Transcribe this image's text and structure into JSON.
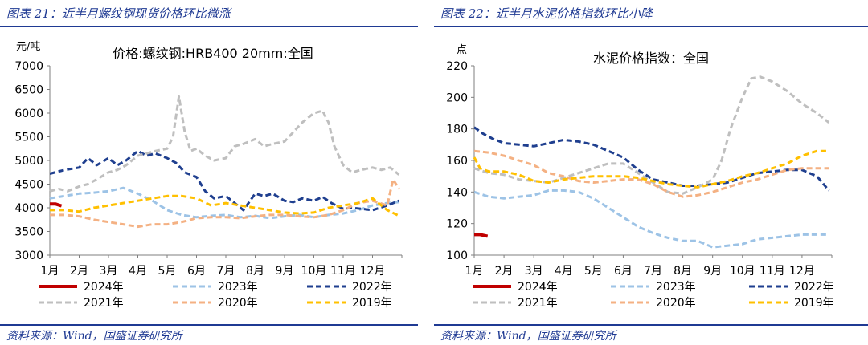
{
  "left": {
    "figure_title": "图表 21：近半月螺纹钢现货价格环比微涨",
    "source": "资料来源：Wind，国盛证券研究所"
  },
  "right": {
    "figure_title": "图表 22：近半月水泥价格指数环比小降",
    "source": "资料来源：Wind，国盛证券研究所"
  },
  "series_colors": {
    "2024年": "#c00000",
    "2023年": "#9dc3e6",
    "2022年": "#1f3f8f",
    "2021年": "#bfbfbf",
    "2020年": "#f4b183",
    "2019年": "#ffc000"
  },
  "chart_data": [
    {
      "type": "line",
      "title": "价格:螺纹钢:HRB400 20mm:全国",
      "ylabel": "元/吨",
      "ylim": [
        3000,
        7000
      ],
      "yticks": [
        3000,
        3500,
        4000,
        4500,
        5000,
        5500,
        6000,
        6500,
        7000
      ],
      "categories": [
        "1月",
        "2月",
        "3月",
        "4月",
        "5月",
        "6月",
        "7月",
        "8月",
        "9月",
        "10月",
        "11月",
        "12月"
      ],
      "x_domain": [
        1,
        13
      ],
      "series": [
        {
          "name": "2024年",
          "x": [
            1.0,
            1.2,
            1.4
          ],
          "values": [
            4080,
            4080,
            4040
          ]
        },
        {
          "name": "2023年",
          "x": [
            1.0,
            1.5,
            2.0,
            2.5,
            3.0,
            3.5,
            4.0,
            4.5,
            5.0,
            5.5,
            6.0,
            6.5,
            7.0,
            7.5,
            8.0,
            8.5,
            9.0,
            9.5,
            10.0,
            10.5,
            11.0,
            11.5,
            12.0,
            12.5,
            12.9
          ],
          "values": [
            4200,
            4250,
            4300,
            4320,
            4350,
            4420,
            4300,
            4150,
            3950,
            3850,
            3800,
            3830,
            3850,
            3800,
            3830,
            3780,
            3820,
            3850,
            3800,
            3850,
            3880,
            3950,
            4050,
            4100,
            4120
          ]
        },
        {
          "name": "2022年",
          "x": [
            1.0,
            1.5,
            2.0,
            2.3,
            2.6,
            3.0,
            3.3,
            3.6,
            4.0,
            4.3,
            4.6,
            5.0,
            5.3,
            5.6,
            6.0,
            6.3,
            6.6,
            7.0,
            7.3,
            7.6,
            8.0,
            8.3,
            8.6,
            9.0,
            9.3,
            9.6,
            10.0,
            10.3,
            10.6,
            11.0,
            11.3,
            11.6,
            12.0,
            12.5,
            12.9
          ],
          "values": [
            4720,
            4800,
            4850,
            5050,
            4900,
            5050,
            4900,
            5000,
            5200,
            5100,
            5150,
            5050,
            4950,
            4750,
            4650,
            4350,
            4200,
            4250,
            4100,
            3950,
            4300,
            4250,
            4300,
            4150,
            4120,
            4200,
            4150,
            4230,
            4100,
            3980,
            4000,
            3980,
            3950,
            4050,
            4150
          ]
        },
        {
          "name": "2021年",
          "x": [
            1.0,
            1.3,
            1.6,
            2.0,
            2.3,
            2.6,
            3.0,
            3.3,
            3.6,
            4.0,
            4.3,
            4.6,
            5.0,
            5.2,
            5.4,
            5.6,
            5.8,
            6.0,
            6.3,
            6.6,
            7.0,
            7.3,
            7.6,
            8.0,
            8.3,
            8.6,
            9.0,
            9.3,
            9.6,
            10.0,
            10.3,
            10.5,
            10.7,
            11.0,
            11.3,
            11.6,
            12.0,
            12.3,
            12.6,
            12.9
          ],
          "values": [
            4350,
            4400,
            4350,
            4450,
            4500,
            4600,
            4750,
            4800,
            4900,
            5100,
            5150,
            5200,
            5250,
            5500,
            6350,
            5600,
            5200,
            5250,
            5100,
            5000,
            5050,
            5300,
            5350,
            5450,
            5300,
            5350,
            5400,
            5600,
            5800,
            6000,
            6050,
            5800,
            5300,
            4900,
            4750,
            4800,
            4850,
            4800,
            4850,
            4700
          ]
        },
        {
          "name": "2020年",
          "x": [
            1.0,
            1.5,
            2.0,
            2.5,
            3.0,
            3.5,
            4.0,
            4.5,
            5.0,
            5.5,
            6.0,
            6.5,
            7.0,
            7.5,
            8.0,
            8.5,
            9.0,
            9.5,
            10.0,
            10.5,
            11.0,
            11.5,
            12.0,
            12.5,
            12.7,
            12.9
          ],
          "values": [
            3850,
            3850,
            3820,
            3750,
            3700,
            3650,
            3600,
            3650,
            3650,
            3700,
            3780,
            3800,
            3800,
            3780,
            3820,
            3850,
            3850,
            3820,
            3800,
            3850,
            3950,
            4100,
            4150,
            4050,
            4600,
            4400
          ]
        },
        {
          "name": "2019年",
          "x": [
            1.0,
            1.5,
            2.0,
            2.5,
            3.0,
            3.5,
            4.0,
            4.5,
            5.0,
            5.5,
            6.0,
            6.5,
            7.0,
            7.5,
            8.0,
            8.5,
            9.0,
            9.5,
            10.0,
            10.5,
            11.0,
            11.5,
            12.0,
            12.5,
            12.9
          ],
          "values": [
            3950,
            3950,
            3920,
            4000,
            4050,
            4100,
            4150,
            4200,
            4250,
            4250,
            4200,
            4050,
            4100,
            4050,
            4000,
            3950,
            3900,
            3880,
            3900,
            4000,
            4050,
            4100,
            4200,
            3950,
            3830
          ]
        }
      ]
    },
    {
      "type": "line",
      "title": "水泥价格指数：全国",
      "ylabel": "点",
      "ylim": [
        100,
        220
      ],
      "yticks": [
        100,
        120,
        140,
        160,
        180,
        200,
        220
      ],
      "categories": [
        "1月",
        "2月",
        "3月",
        "4月",
        "5月",
        "6月",
        "7月",
        "8月",
        "9月",
        "10月",
        "11月",
        "12月"
      ],
      "x_domain": [
        1,
        13
      ],
      "series": [
        {
          "name": "2024年",
          "x": [
            1.0,
            1.2,
            1.45
          ],
          "values": [
            113,
            113,
            112
          ]
        },
        {
          "name": "2023年",
          "x": [
            1.0,
            1.5,
            2.0,
            2.5,
            3.0,
            3.5,
            4.0,
            4.5,
            5.0,
            5.5,
            6.0,
            6.5,
            7.0,
            7.5,
            8.0,
            8.5,
            9.0,
            9.5,
            10.0,
            10.5,
            11.0,
            11.5,
            12.0,
            12.5,
            12.9
          ],
          "values": [
            140,
            137,
            136,
            137,
            138,
            141,
            141,
            140,
            136,
            130,
            124,
            118,
            114,
            111,
            109,
            109,
            105,
            106,
            107,
            110,
            111,
            112,
            113,
            113,
            113
          ]
        },
        {
          "name": "2022年",
          "x": [
            1.0,
            1.3,
            1.6,
            2.0,
            2.5,
            3.0,
            3.5,
            4.0,
            4.5,
            5.0,
            5.5,
            6.0,
            6.5,
            7.0,
            7.5,
            8.0,
            8.5,
            9.0,
            9.5,
            10.0,
            10.5,
            11.0,
            11.5,
            12.0,
            12.5,
            12.9
          ],
          "values": [
            181,
            177,
            174,
            171,
            170,
            169,
            171,
            173,
            172,
            170,
            166,
            162,
            154,
            148,
            146,
            144,
            144,
            145,
            146,
            149,
            152,
            153,
            154,
            154,
            150,
            141
          ]
        },
        {
          "name": "2021年",
          "x": [
            1.0,
            1.5,
            2.0,
            2.5,
            3.0,
            3.5,
            4.0,
            4.5,
            5.0,
            5.5,
            6.0,
            6.5,
            7.0,
            7.5,
            8.0,
            8.5,
            9.0,
            9.3,
            9.6,
            10.0,
            10.3,
            10.6,
            11.0,
            11.5,
            12.0,
            12.5,
            12.9
          ],
          "values": [
            155,
            152,
            151,
            148,
            147,
            146,
            149,
            152,
            155,
            158,
            158,
            152,
            146,
            140,
            139,
            143,
            148,
            160,
            180,
            200,
            212,
            213,
            210,
            204,
            196,
            190,
            184
          ]
        },
        {
          "name": "2020年",
          "x": [
            1.0,
            1.5,
            2.0,
            2.5,
            3.0,
            3.5,
            4.0,
            4.5,
            5.0,
            5.5,
            6.0,
            6.5,
            7.0,
            7.5,
            8.0,
            8.5,
            9.0,
            9.5,
            10.0,
            10.5,
            11.0,
            11.5,
            12.0,
            12.5,
            12.9
          ],
          "values": [
            166,
            165,
            163,
            160,
            157,
            152,
            150,
            147,
            146,
            147,
            148,
            148,
            145,
            140,
            137,
            138,
            140,
            143,
            146,
            148,
            151,
            154,
            155,
            155,
            155
          ]
        },
        {
          "name": "2019年",
          "x": [
            1.0,
            1.2,
            1.5,
            2.0,
            2.5,
            3.0,
            3.5,
            4.0,
            4.5,
            5.0,
            5.5,
            6.0,
            6.5,
            7.0,
            7.5,
            8.0,
            8.5,
            9.0,
            9.5,
            10.0,
            10.5,
            11.0,
            11.5,
            12.0,
            12.5,
            12.9
          ],
          "values": [
            162,
            155,
            153,
            153,
            151,
            147,
            146,
            148,
            149,
            150,
            150,
            150,
            149,
            147,
            145,
            144,
            143,
            145,
            147,
            150,
            152,
            155,
            158,
            163,
            166,
            166
          ]
        }
      ]
    }
  ]
}
